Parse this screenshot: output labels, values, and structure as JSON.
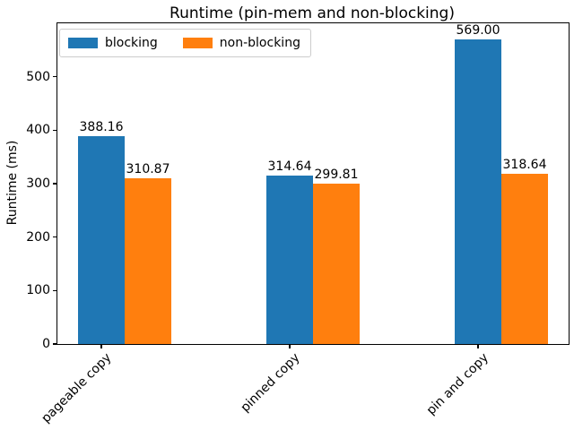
{
  "figure": {
    "title": "Runtime (pin-mem and non-blocking)",
    "ylabel": "Runtime (ms)"
  },
  "legend": {
    "items": [
      {
        "label": "blocking",
        "color": "#1f77b4"
      },
      {
        "label": "non-blocking",
        "color": "#ff7f0e"
      }
    ]
  },
  "chart_data": {
    "type": "bar",
    "title": "Runtime (pin-mem and non-blocking)",
    "xlabel": "",
    "ylabel": "Runtime (ms)",
    "categories": [
      "pageable copy",
      "pinned copy",
      "pin and copy"
    ],
    "series": [
      {
        "name": "blocking",
        "color": "#1f77b4",
        "values": [
          388.16,
          314.64,
          569.0
        ],
        "value_labels": [
          "388.16",
          "314.64",
          "569.00"
        ]
      },
      {
        "name": "non-blocking",
        "color": "#ff7f0e",
        "values": [
          310.87,
          299.81,
          318.64
        ],
        "value_labels": [
          "310.87",
          "299.81",
          "318.64"
        ]
      }
    ],
    "yticks": [
      0,
      100,
      200,
      300,
      400,
      500
    ],
    "ytick_labels": [
      "0",
      "100",
      "200",
      "300",
      "400",
      "500"
    ],
    "ylim": [
      0,
      600
    ],
    "grid": false,
    "legend_position": "upper left",
    "xtick_rotation": 45
  }
}
